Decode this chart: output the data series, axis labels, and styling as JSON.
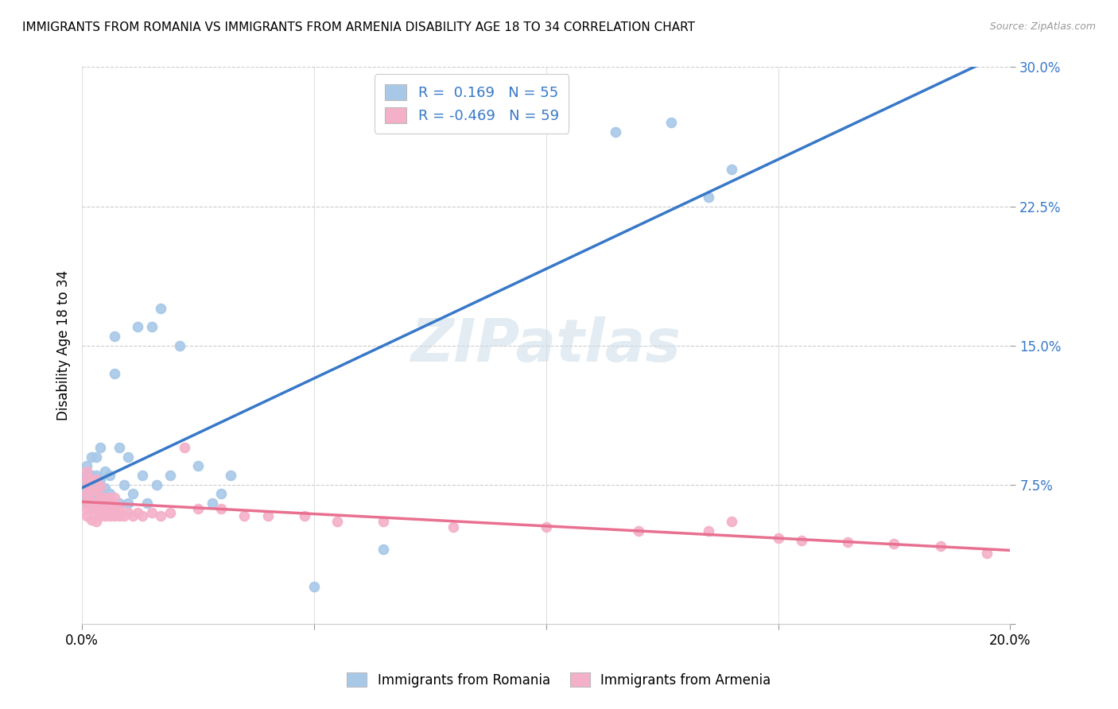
{
  "title": "IMMIGRANTS FROM ROMANIA VS IMMIGRANTS FROM ARMENIA DISABILITY AGE 18 TO 34 CORRELATION CHART",
  "source": "Source: ZipAtlas.com",
  "ylabel": "Disability Age 18 to 34",
  "xlim": [
    0.0,
    0.2
  ],
  "ylim": [
    0.0,
    0.3
  ],
  "xticks": [
    0.0,
    0.05,
    0.1,
    0.15,
    0.2
  ],
  "xticklabels": [
    "0.0%",
    "",
    "",
    "",
    "20.0%"
  ],
  "yticks": [
    0.0,
    0.075,
    0.15,
    0.225,
    0.3
  ],
  "yticklabels": [
    "",
    "7.5%",
    "15.0%",
    "22.5%",
    "30.0%"
  ],
  "watermark": "ZIPatlas",
  "romania_color": "#a8c8e8",
  "armenia_color": "#f4b0c8",
  "romania_line_color": "#3878c8",
  "armenia_line_color": "#e87090",
  "romania_label": "Immigrants from Romania",
  "armenia_label": "Immigrants from Armenia",
  "romania_x": [
    0.001,
    0.001,
    0.001,
    0.001,
    0.001,
    0.001,
    0.001,
    0.001,
    0.002,
    0.002,
    0.002,
    0.002,
    0.002,
    0.002,
    0.002,
    0.003,
    0.003,
    0.003,
    0.003,
    0.003,
    0.004,
    0.004,
    0.004,
    0.004,
    0.005,
    0.005,
    0.005,
    0.006,
    0.006,
    0.007,
    0.007,
    0.008,
    0.008,
    0.009,
    0.01,
    0.01,
    0.011,
    0.012,
    0.013,
    0.014,
    0.015,
    0.016,
    0.017,
    0.019,
    0.021,
    0.025,
    0.028,
    0.03,
    0.032,
    0.115,
    0.127,
    0.135,
    0.14,
    0.05,
    0.065
  ],
  "romania_y": [
    0.065,
    0.067,
    0.07,
    0.072,
    0.075,
    0.078,
    0.08,
    0.085,
    0.063,
    0.067,
    0.07,
    0.073,
    0.077,
    0.08,
    0.09,
    0.065,
    0.07,
    0.075,
    0.08,
    0.09,
    0.068,
    0.072,
    0.078,
    0.095,
    0.068,
    0.073,
    0.082,
    0.07,
    0.08,
    0.135,
    0.155,
    0.065,
    0.095,
    0.075,
    0.065,
    0.09,
    0.07,
    0.16,
    0.08,
    0.065,
    0.16,
    0.075,
    0.17,
    0.08,
    0.15,
    0.085,
    0.065,
    0.07,
    0.08,
    0.265,
    0.27,
    0.23,
    0.245,
    0.02,
    0.04
  ],
  "armenia_x": [
    0.001,
    0.001,
    0.001,
    0.001,
    0.001,
    0.001,
    0.001,
    0.002,
    0.002,
    0.002,
    0.002,
    0.002,
    0.003,
    0.003,
    0.003,
    0.003,
    0.003,
    0.004,
    0.004,
    0.004,
    0.004,
    0.005,
    0.005,
    0.005,
    0.006,
    0.006,
    0.006,
    0.007,
    0.007,
    0.007,
    0.008,
    0.008,
    0.009,
    0.01,
    0.011,
    0.012,
    0.013,
    0.015,
    0.017,
    0.019,
    0.022,
    0.025,
    0.03,
    0.035,
    0.04,
    0.048,
    0.055,
    0.065,
    0.08,
    0.1,
    0.12,
    0.135,
    0.14,
    0.15,
    0.155,
    0.165,
    0.175,
    0.185,
    0.195
  ],
  "armenia_y": [
    0.058,
    0.062,
    0.066,
    0.07,
    0.074,
    0.078,
    0.082,
    0.056,
    0.062,
    0.066,
    0.072,
    0.078,
    0.055,
    0.061,
    0.066,
    0.072,
    0.078,
    0.058,
    0.063,
    0.068,
    0.074,
    0.058,
    0.063,
    0.068,
    0.058,
    0.063,
    0.068,
    0.058,
    0.062,
    0.068,
    0.058,
    0.063,
    0.058,
    0.06,
    0.058,
    0.06,
    0.058,
    0.06,
    0.058,
    0.06,
    0.095,
    0.062,
    0.062,
    0.058,
    0.058,
    0.058,
    0.055,
    0.055,
    0.052,
    0.052,
    0.05,
    0.05,
    0.055,
    0.046,
    0.045,
    0.044,
    0.043,
    0.042,
    0.038
  ]
}
